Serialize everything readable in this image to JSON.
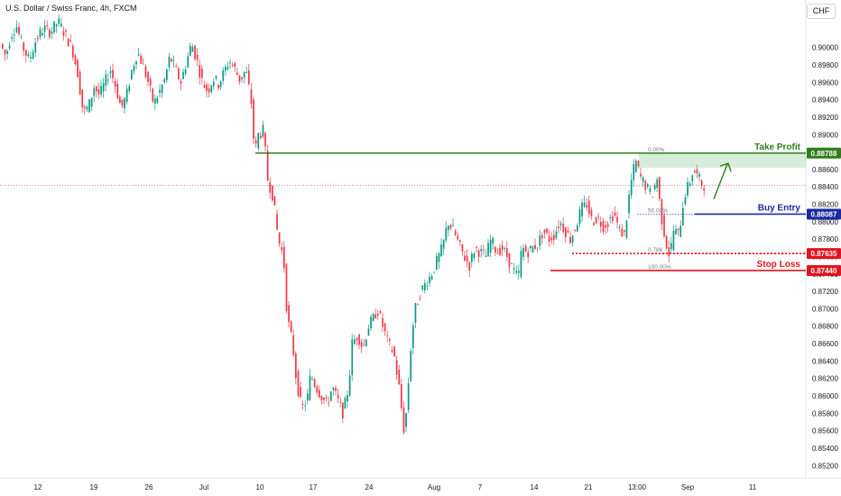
{
  "header": {
    "title": "U.S. Dollar / Swiss Franc, 4h, FXCM",
    "currency_button": "CHF"
  },
  "chart_data": {
    "type": "candlestick",
    "symbol": "USDCHF",
    "timeframe": "4h",
    "y_ticks": [
      "0.90000",
      "0.89800",
      "0.89600",
      "0.89400",
      "0.89200",
      "0.89000",
      "0.88800",
      "0.88600",
      "0.88400",
      "0.88200",
      "0.88000",
      "0.87800",
      "0.87600",
      "0.87400",
      "0.87200",
      "0.87000",
      "0.86800",
      "0.86600",
      "0.86400",
      "0.86200",
      "0.86000",
      "0.85800",
      "0.85600",
      "0.85400",
      "0.85200"
    ],
    "ylim": [
      0.8512,
      0.9038
    ],
    "x_ticks": [
      "12",
      "19",
      "26",
      "Jul",
      "10",
      "17",
      "24",
      "Aug",
      "7",
      "14",
      "21",
      "13:00",
      "Sep",
      "11"
    ],
    "colors": {
      "up": "#089981",
      "down": "#f23645",
      "take_profit": "#2e7d1a",
      "entry": "#1a2aa0",
      "stop": "#e0141e",
      "current": "#f23645"
    },
    "price_path": [
      [
        0,
        0.9009
      ],
      [
        8,
        0.899
      ],
      [
        14,
        0.9015
      ],
      [
        20,
        0.9025
      ],
      [
        26,
        0.9003
      ],
      [
        34,
        0.8985
      ],
      [
        42,
        0.901
      ],
      [
        50,
        0.9022
      ],
      [
        58,
        0.9018
      ],
      [
        66,
        0.903
      ],
      [
        74,
        0.9015
      ],
      [
        82,
        0.8998
      ],
      [
        88,
        0.897
      ],
      [
        94,
        0.8925
      ],
      [
        100,
        0.8932
      ],
      [
        106,
        0.8955
      ],
      [
        112,
        0.8945
      ],
      [
        118,
        0.896
      ],
      [
        124,
        0.8975
      ],
      [
        130,
        0.8955
      ],
      [
        136,
        0.893
      ],
      [
        142,
        0.8945
      ],
      [
        148,
        0.8975
      ],
      [
        154,
        0.8995
      ],
      [
        160,
        0.898
      ],
      [
        166,
        0.896
      ],
      [
        172,
        0.8935
      ],
      [
        178,
        0.8948
      ],
      [
        184,
        0.8962
      ],
      [
        190,
        0.899
      ],
      [
        196,
        0.8975
      ],
      [
        202,
        0.896
      ],
      [
        208,
        0.8982
      ],
      [
        214,
        0.9005
      ],
      [
        220,
        0.8985
      ],
      [
        226,
        0.896
      ],
      [
        232,
        0.895
      ],
      [
        238,
        0.8965
      ],
      [
        244,
        0.8958
      ],
      [
        250,
        0.8972
      ],
      [
        256,
        0.8985
      ],
      [
        262,
        0.8975
      ],
      [
        268,
        0.8962
      ],
      [
        274,
        0.8975
      ],
      [
        280,
        0.894
      ],
      [
        284,
        0.8878
      ],
      [
        288,
        0.89
      ],
      [
        294,
        0.8905
      ],
      [
        298,
        0.885
      ],
      [
        304,
        0.883
      ],
      [
        310,
        0.878
      ],
      [
        316,
        0.876
      ],
      [
        320,
        0.869
      ],
      [
        326,
        0.866
      ],
      [
        330,
        0.862
      ],
      [
        336,
        0.8585
      ],
      [
        342,
        0.8595
      ],
      [
        346,
        0.8625
      ],
      [
        352,
        0.861
      ],
      [
        358,
        0.86
      ],
      [
        364,
        0.859
      ],
      [
        370,
        0.861
      ],
      [
        376,
        0.8595
      ],
      [
        382,
        0.858
      ],
      [
        388,
        0.861
      ],
      [
        392,
        0.866
      ],
      [
        398,
        0.867
      ],
      [
        404,
        0.8655
      ],
      [
        410,
        0.868
      ],
      [
        416,
        0.869
      ],
      [
        420,
        0.87
      ],
      [
        426,
        0.868
      ],
      [
        432,
        0.866
      ],
      [
        438,
        0.865
      ],
      [
        444,
        0.861
      ],
      [
        450,
        0.8555
      ],
      [
        454,
        0.861
      ],
      [
        458,
        0.867
      ],
      [
        462,
        0.87
      ],
      [
        468,
        0.872
      ],
      [
        474,
        0.873
      ],
      [
        480,
        0.874
      ],
      [
        486,
        0.8755
      ],
      [
        492,
        0.877
      ],
      [
        498,
        0.88
      ],
      [
        504,
        0.879
      ],
      [
        510,
        0.8775
      ],
      [
        516,
        0.876
      ],
      [
        522,
        0.875
      ],
      [
        528,
        0.877
      ],
      [
        534,
        0.8765
      ],
      [
        540,
        0.876
      ],
      [
        546,
        0.878
      ],
      [
        552,
        0.8765
      ],
      [
        558,
        0.877
      ],
      [
        564,
        0.876
      ],
      [
        570,
        0.8745
      ],
      [
        576,
        0.8735
      ],
      [
        580,
        0.877
      ],
      [
        586,
        0.8765
      ],
      [
        592,
        0.877
      ],
      [
        598,
        0.8775
      ],
      [
        604,
        0.879
      ],
      [
        610,
        0.878
      ],
      [
        616,
        0.8785
      ],
      [
        622,
        0.88
      ],
      [
        628,
        0.879
      ],
      [
        634,
        0.878
      ],
      [
        640,
        0.8795
      ],
      [
        646,
        0.8815
      ],
      [
        652,
        0.882
      ],
      [
        658,
        0.88
      ],
      [
        664,
        0.8805
      ],
      [
        670,
        0.8795
      ],
      [
        676,
        0.88
      ],
      [
        682,
        0.881
      ],
      [
        688,
        0.879
      ],
      [
        694,
        0.8785
      ],
      [
        700,
        0.884
      ],
      [
        706,
        0.887
      ],
      [
        712,
        0.885
      ],
      [
        718,
        0.884
      ],
      [
        724,
        0.883
      ],
      [
        730,
        0.885
      ],
      [
        734,
        0.881
      ],
      [
        740,
        0.8775
      ],
      [
        744,
        0.876
      ],
      [
        748,
        0.879
      ],
      [
        754,
        0.8785
      ],
      [
        760,
        0.883
      ],
      [
        766,
        0.8845
      ],
      [
        770,
        0.886
      ],
      [
        776,
        0.885
      ],
      [
        780,
        0.8842
      ]
    ],
    "fibonacci": [
      {
        "label": "0.00%",
        "price": 0.88788
      },
      {
        "label": "50.00%",
        "price": 0.88087
      },
      {
        "label": "0.786",
        "price": 0.87635
      },
      {
        "label": "100.00%",
        "price": 0.8744
      }
    ],
    "levels": [
      {
        "name": "Take Profit",
        "price_label": "0.88788",
        "price": 0.88788,
        "color": "#2e7d1a"
      },
      {
        "name": "Buy Entry",
        "price_label": "0.88087",
        "price": 0.88087,
        "color": "#1a2aa0"
      },
      {
        "name": "",
        "price_label": "0.87635",
        "price": 0.87635,
        "color": "#e0141e"
      },
      {
        "name": "Stop Loss",
        "price_label": "0.87440",
        "price": 0.8744,
        "color": "#e0141e"
      }
    ],
    "current_price": 0.8842
  }
}
